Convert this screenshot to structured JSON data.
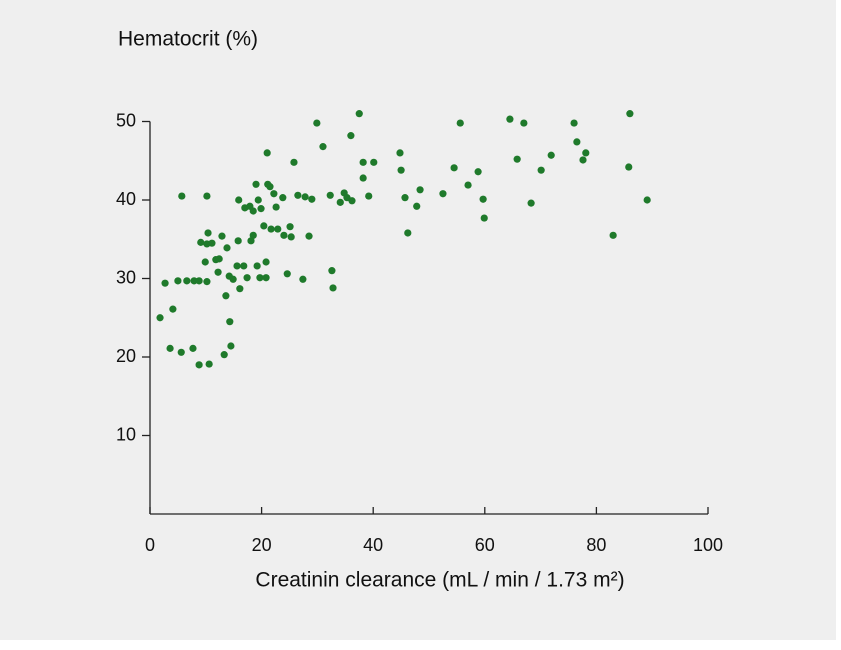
{
  "chart_data": {
    "type": "scatter",
    "title": "Hematocrit (%)",
    "x_label": "Creatinin clearance (mL / min / 1.73 m²)",
    "color": "#1f7a2b",
    "xlim": [
      0,
      100
    ],
    "ylim": [
      0,
      50
    ],
    "xticks": [
      0,
      20,
      40,
      60,
      80,
      100
    ],
    "yticks": [
      10,
      20,
      30,
      40,
      50
    ],
    "x": [
      1.8,
      2.7,
      3.6,
      4.1,
      5.0,
      5.6,
      5.7,
      6.6,
      7.7,
      7.9,
      8.8,
      8.8,
      9.1,
      9.9,
      10.2,
      10.2,
      10.2,
      10.4,
      10.6,
      11.1,
      11.8,
      12.2,
      12.4,
      12.9,
      13.3,
      13.6,
      13.8,
      14.2,
      14.3,
      14.5,
      14.9,
      15.6,
      15.8,
      15.9,
      16.1,
      16.8,
      17.0,
      17.4,
      17.9,
      18.1,
      18.5,
      18.5,
      19.0,
      19.2,
      19.4,
      19.7,
      19.9,
      20.4,
      20.8,
      20.8,
      21.0,
      21.1,
      21.5,
      21.7,
      22.2,
      22.6,
      22.9,
      23.8,
      24.0,
      24.6,
      25.1,
      25.3,
      25.8,
      26.5,
      27.4,
      27.8,
      28.5,
      29.0,
      29.9,
      31.0,
      32.3,
      32.6,
      32.8,
      34.1,
      34.8,
      35.3,
      36.0,
      36.2,
      37.5,
      38.2,
      38.2,
      39.2,
      40.1,
      44.8,
      45.0,
      45.7,
      46.2,
      47.8,
      48.4,
      52.5,
      54.5,
      55.6,
      57.0,
      58.8,
      59.7,
      59.9,
      64.5,
      65.8,
      67.0,
      68.3,
      70.1,
      71.9,
      76.0,
      76.5,
      77.6,
      78.1,
      83.0,
      85.8,
      86.0,
      89.1
    ],
    "y": [
      25.0,
      29.4,
      21.1,
      26.1,
      29.7,
      20.6,
      40.5,
      29.7,
      21.1,
      29.7,
      29.7,
      19.0,
      34.6,
      32.1,
      34.4,
      40.5,
      29.6,
      35.8,
      19.1,
      34.5,
      32.4,
      30.8,
      32.5,
      35.4,
      20.3,
      27.8,
      33.9,
      30.3,
      24.5,
      21.4,
      29.9,
      31.6,
      34.8,
      40.0,
      28.7,
      31.6,
      39.0,
      30.1,
      39.2,
      34.8,
      38.6,
      35.5,
      42.0,
      31.6,
      40.0,
      30.1,
      38.9,
      36.7,
      32.1,
      30.1,
      46.0,
      42.0,
      41.7,
      36.3,
      40.8,
      39.1,
      36.3,
      40.3,
      35.5,
      30.6,
      36.6,
      35.3,
      44.8,
      40.6,
      29.9,
      40.4,
      35.4,
      40.1,
      49.8,
      46.8,
      40.6,
      31.0,
      28.8,
      39.7,
      40.9,
      40.3,
      48.2,
      39.9,
      51.0,
      42.8,
      44.8,
      40.5,
      44.8,
      46.0,
      43.8,
      40.3,
      35.8,
      39.2,
      41.3,
      40.8,
      44.1,
      49.8,
      41.9,
      43.6,
      40.1,
      37.7,
      50.3,
      45.2,
      49.8,
      39.6,
      43.8,
      45.7,
      49.8,
      47.4,
      45.1,
      46.0,
      35.5,
      44.2,
      51.0,
      40.0
    ]
  }
}
